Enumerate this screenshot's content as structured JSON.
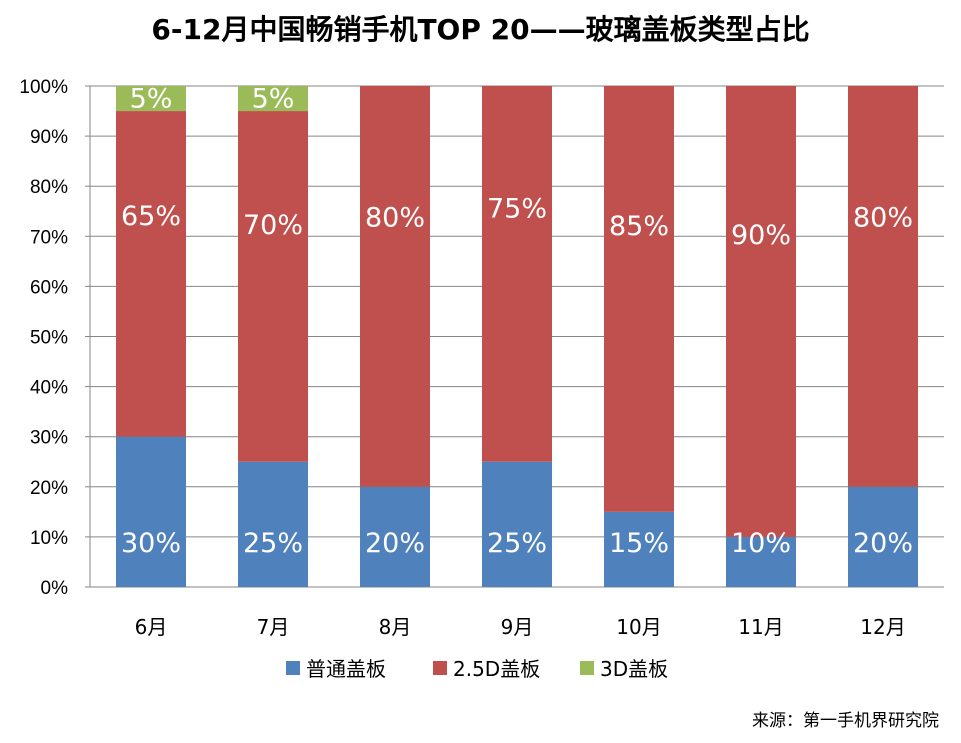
{
  "chart_data": {
    "type": "bar",
    "stacked": true,
    "title": "6-12月中国畅销手机TOP 20——玻璃盖板类型占比",
    "categories": [
      "6月",
      "7月",
      "8月",
      "9月",
      "10月",
      "11月",
      "12月"
    ],
    "series": [
      {
        "name": "普通盖板",
        "color": "#4f81bd",
        "values": [
          30,
          25,
          20,
          25,
          15,
          10,
          20
        ]
      },
      {
        "name": "2.5D盖板",
        "color": "#c0504d",
        "values": [
          65,
          70,
          80,
          75,
          85,
          90,
          80
        ]
      },
      {
        "name": "3D盖板",
        "color": "#9bbb59",
        "values": [
          5,
          5,
          0,
          0,
          0,
          0,
          0
        ]
      }
    ],
    "yticks": [
      "0%",
      "10%",
      "20%",
      "30%",
      "40%",
      "50%",
      "60%",
      "70%",
      "80%",
      "90%",
      "100%"
    ],
    "ylim": [
      0,
      100
    ],
    "grid": true,
    "legend_position": "bottom",
    "source": "来源：第一手机界研究院"
  }
}
